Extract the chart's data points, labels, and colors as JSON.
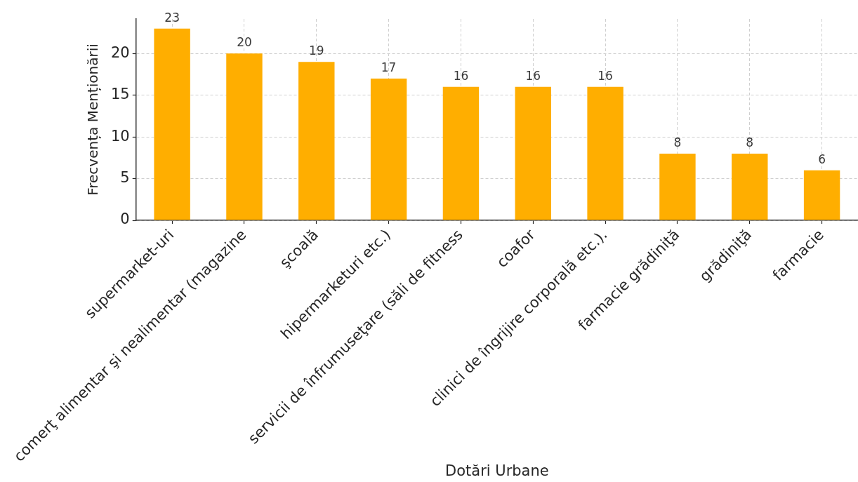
{
  "chart_data": {
    "type": "bar",
    "xlabel": "Dotări Urbane",
    "ylabel": "Frecvența Menționării",
    "categories": [
      "supermarket-uri",
      "comerţ alimentar şi nealimentar (magazine",
      "şcoală",
      "hipermarketuri etc.)",
      "servicii de înfrumuseţare (săli de fitness",
      "coafor",
      "clinici de îngrijire corporală etc.).",
      "farmacie grădiniţă",
      "grădiniţă",
      "farmacie"
    ],
    "values": [
      23,
      20,
      19,
      17,
      16,
      16,
      16,
      8,
      8,
      6
    ],
    "color": "#ffae00",
    "ylim": [
      0,
      24.15
    ],
    "yticks": [
      0,
      5,
      10,
      15,
      20
    ],
    "grid": true,
    "data_labels": true
  }
}
